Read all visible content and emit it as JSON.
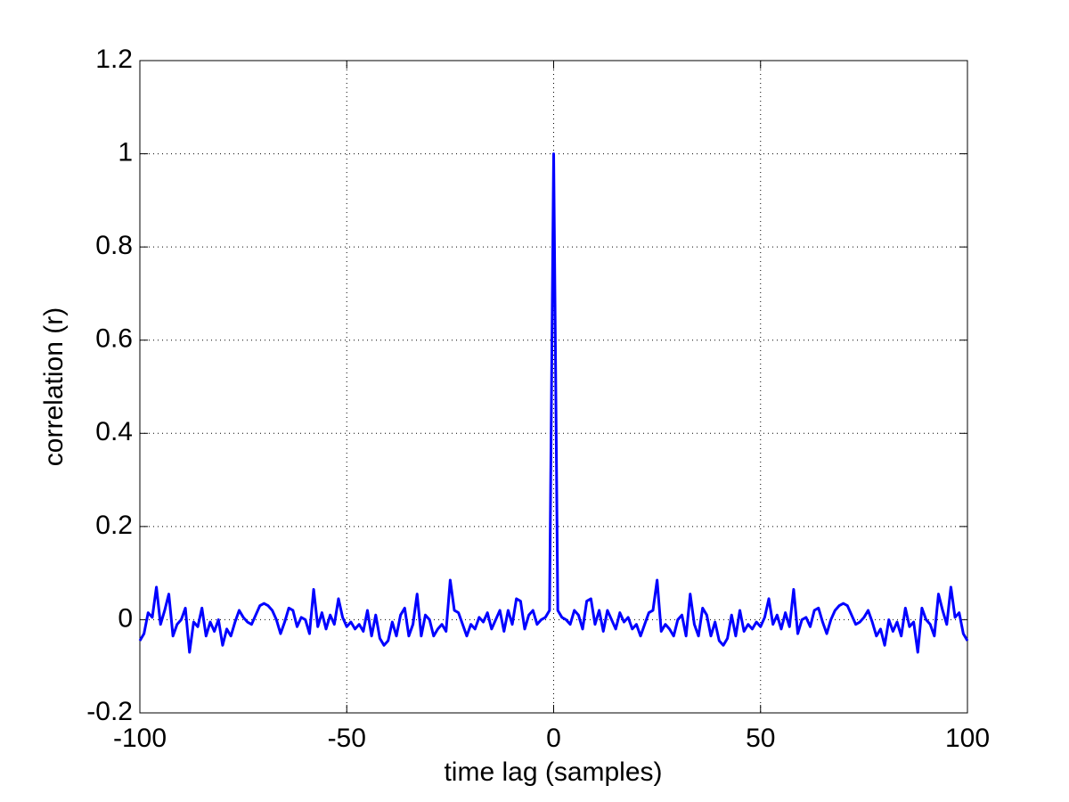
{
  "chart_data": {
    "type": "line",
    "xlabel": "time lag (samples)",
    "ylabel": "correlation (r)",
    "x": [
      -100,
      -99,
      -98,
      -97,
      -96,
      -95,
      -94,
      -93,
      -92,
      -91,
      -90,
      -89,
      -88,
      -87,
      -86,
      -85,
      -84,
      -83,
      -82,
      -81,
      -80,
      -79,
      -78,
      -77,
      -76,
      -75,
      -74,
      -73,
      -72,
      -71,
      -70,
      -69,
      -68,
      -67,
      -66,
      -65,
      -64,
      -63,
      -62,
      -61,
      -60,
      -59,
      -58,
      -57,
      -56,
      -55,
      -54,
      -53,
      -52,
      -51,
      -50,
      -49,
      -48,
      -47,
      -46,
      -45,
      -44,
      -43,
      -42,
      -41,
      -40,
      -39,
      -38,
      -37,
      -36,
      -35,
      -34,
      -33,
      -32,
      -31,
      -30,
      -29,
      -28,
      -27,
      -26,
      -25,
      -24,
      -23,
      -22,
      -21,
      -20,
      -19,
      -18,
      -17,
      -16,
      -15,
      -14,
      -13,
      -12,
      -11,
      -10,
      -9,
      -8,
      -7,
      -6,
      -5,
      -4,
      -3,
      -2,
      -1,
      0,
      1,
      2,
      3,
      4,
      5,
      6,
      7,
      8,
      9,
      10,
      11,
      12,
      13,
      14,
      15,
      16,
      17,
      18,
      19,
      20,
      21,
      22,
      23,
      24,
      25,
      26,
      27,
      28,
      29,
      30,
      31,
      32,
      33,
      34,
      35,
      36,
      37,
      38,
      39,
      40,
      41,
      42,
      43,
      44,
      45,
      46,
      47,
      48,
      49,
      50,
      51,
      52,
      53,
      54,
      55,
      56,
      57,
      58,
      59,
      60,
      61,
      62,
      63,
      64,
      65,
      66,
      67,
      68,
      69,
      70,
      71,
      72,
      73,
      74,
      75,
      76,
      77,
      78,
      79,
      80,
      81,
      82,
      83,
      84,
      85,
      86,
      87,
      88,
      89,
      90,
      91,
      92,
      93,
      94,
      95,
      96,
      97,
      98,
      99,
      100
    ],
    "series": [
      {
        "color": "#0000ff",
        "values": [
          -0.045,
          -0.03,
          0.015,
          0.005,
          0.07,
          -0.01,
          0.02,
          0.055,
          -0.035,
          -0.01,
          0,
          0.025,
          -0.07,
          -0.005,
          -0.015,
          0.025,
          -0.035,
          -0.005,
          -0.025,
          0,
          -0.055,
          -0.02,
          -0.035,
          -0.005,
          0.02,
          0.005,
          -0.005,
          -0.01,
          0.01,
          0.03,
          0.035,
          0.03,
          0.02,
          0,
          -0.03,
          -0.005,
          0.025,
          0.02,
          -0.015,
          0.005,
          0,
          -0.03,
          0.065,
          -0.015,
          0.015,
          -0.02,
          0.01,
          -0.01,
          0.045,
          0.005,
          -0.015,
          -0.005,
          -0.02,
          -0.01,
          -0.025,
          0.02,
          -0.035,
          0.01,
          -0.04,
          -0.055,
          -0.045,
          -0.005,
          -0.035,
          0.01,
          0.025,
          -0.035,
          -0.01,
          0.055,
          -0.035,
          0.01,
          0,
          -0.035,
          -0.02,
          -0.01,
          -0.025,
          0.085,
          0.02,
          0.015,
          -0.01,
          -0.035,
          -0.01,
          -0.02,
          0.005,
          -0.005,
          0.015,
          -0.02,
          0,
          0.02,
          -0.025,
          0.02,
          -0.01,
          0.045,
          0.04,
          -0.02,
          0.01,
          0.02,
          -0.01,
          0,
          0.005,
          0.02,
          1,
          0.02,
          0.005,
          0,
          -0.01,
          0.02,
          0.01,
          -0.02,
          0.04,
          0.045,
          -0.01,
          0.02,
          -0.025,
          0.02,
          0,
          -0.02,
          0.015,
          -0.005,
          0.005,
          -0.02,
          -0.01,
          -0.035,
          -0.01,
          0.015,
          0.02,
          0.085,
          -0.025,
          -0.01,
          -0.02,
          -0.035,
          0,
          0.01,
          -0.035,
          0.055,
          -0.01,
          -0.035,
          0.025,
          0.01,
          -0.035,
          -0.005,
          -0.045,
          -0.055,
          -0.04,
          0.01,
          -0.035,
          0.02,
          -0.025,
          -0.01,
          -0.02,
          -0.005,
          -0.015,
          0.005,
          0.045,
          -0.01,
          0.01,
          -0.02,
          0.015,
          -0.015,
          0.065,
          -0.03,
          0,
          0.005,
          -0.015,
          0.02,
          0.025,
          -0.005,
          -0.03,
          0,
          0.02,
          0.03,
          0.035,
          0.03,
          0.01,
          -0.01,
          -0.005,
          0.005,
          0.02,
          -0.005,
          -0.035,
          -0.02,
          -0.055,
          0,
          -0.025,
          -0.005,
          -0.035,
          0.025,
          -0.015,
          -0.005,
          -0.07,
          0.025,
          0,
          -0.01,
          -0.035,
          0.055,
          0.02,
          -0.01,
          0.07,
          0.005,
          0.015,
          -0.03,
          -0.045
        ]
      }
    ],
    "xlim": [
      -100,
      100
    ],
    "xticks": [
      -100,
      -50,
      0,
      50,
      100
    ],
    "ylim": [
      -0.2,
      1.2
    ],
    "yticks": [
      -0.2,
      0,
      0.2,
      0.4,
      0.6,
      0.8,
      1,
      1.2
    ],
    "grid": true
  }
}
